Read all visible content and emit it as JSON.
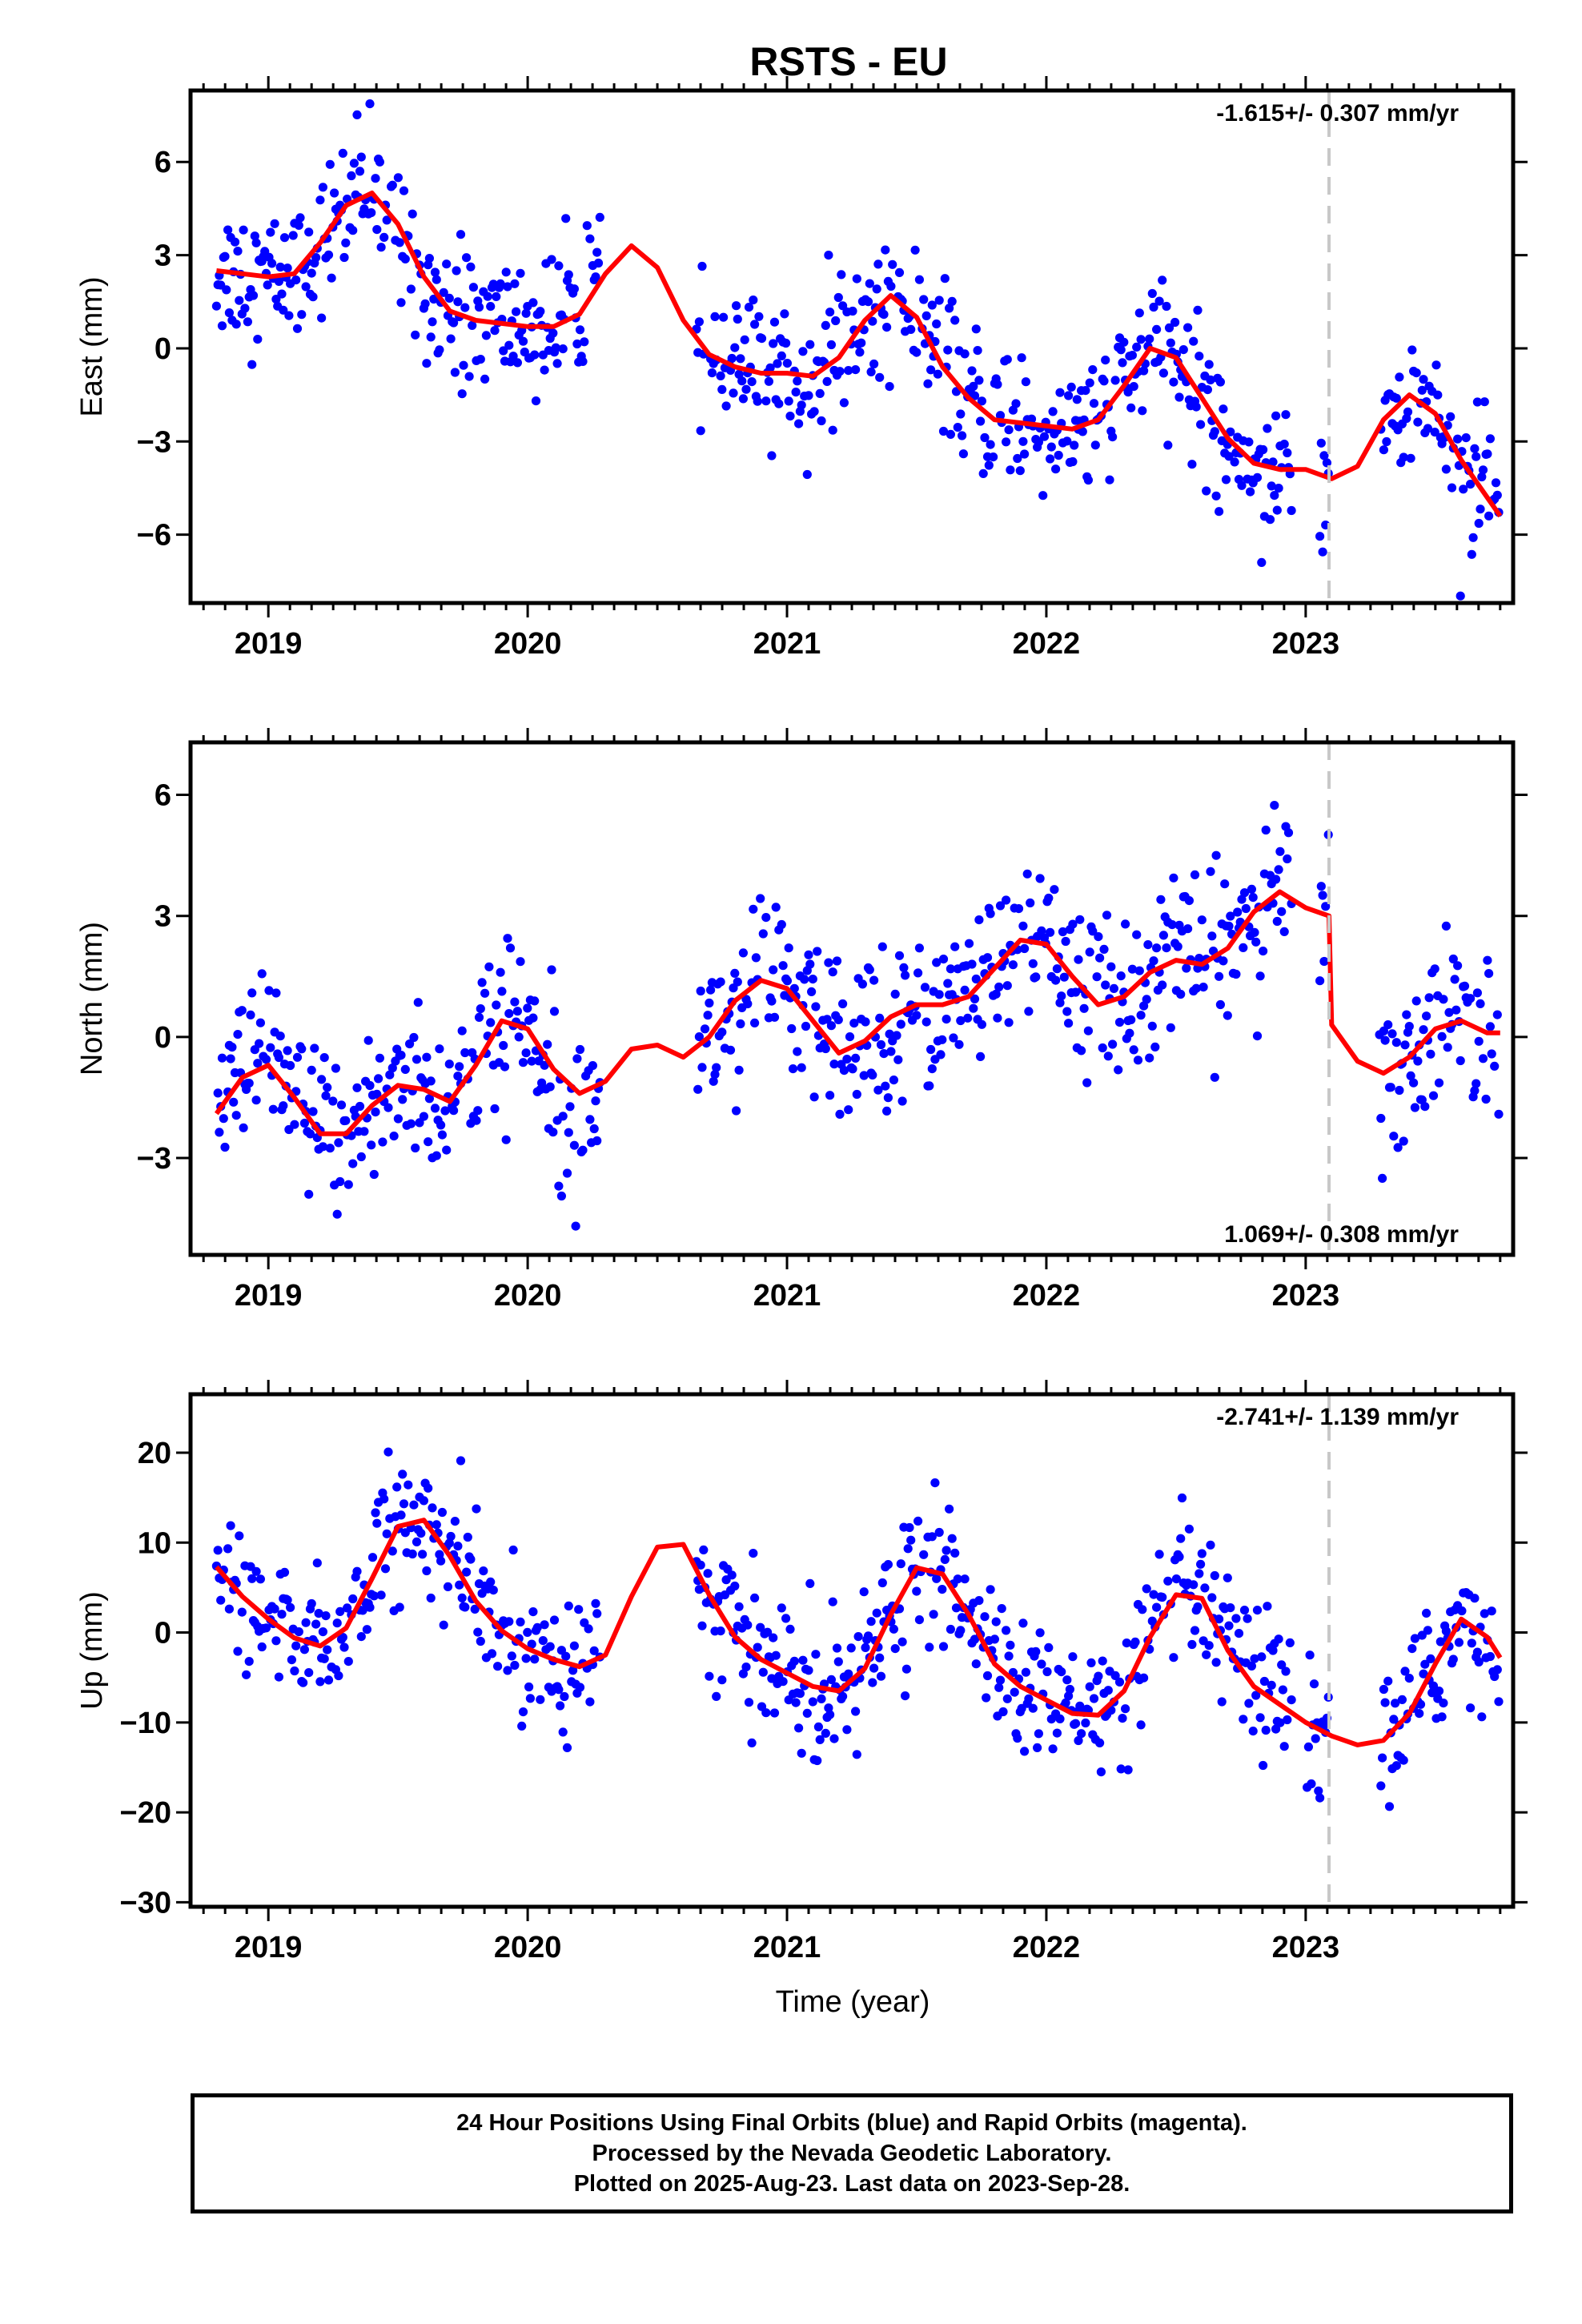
{
  "title": "RSTS - EU",
  "xlabel": "Time (year)",
  "footer": {
    "line1": "24 Hour Positions Using Final Orbits (blue) and Rapid Orbits (magenta).",
    "line2": "Processed by the Nevada Geodetic Laboratory.",
    "line3": "Plotted on 2025-Aug-23. Last data on 2023-Sep-28."
  },
  "colors": {
    "points": "#0000ff",
    "model": "#ff0000",
    "break_line": "#c8c8c8"
  },
  "chart_data": [
    {
      "type": "scatter",
      "ylabel": "East (mm)",
      "rate_label": "-1.615+/- 0.307 mm/yr",
      "rate_position": "top-right",
      "xlim": [
        2018.7,
        2023.8
      ],
      "ylim": [
        -8.2,
        8.3
      ],
      "xticks": [
        "2019",
        "2020",
        "2021",
        "2022",
        "2023"
      ],
      "yticks": [
        "6",
        "3",
        "0",
        "−3",
        "−6"
      ],
      "ytick_values": [
        6,
        3,
        0,
        -3,
        -6
      ],
      "break_x": 2023.09,
      "data_gaps": [
        [
          2020.28,
          2020.65
        ],
        [
          2022.95,
          2023.05
        ],
        [
          2023.09,
          2023.28
        ]
      ],
      "model": {
        "x": [
          2018.8,
          2018.9,
          2019.0,
          2019.1,
          2019.2,
          2019.3,
          2019.4,
          2019.5,
          2019.6,
          2019.7,
          2019.8,
          2019.9,
          2020.0,
          2020.1,
          2020.2,
          2020.3,
          2020.4,
          2020.5,
          2020.6,
          2020.7,
          2020.8,
          2020.9,
          2021.0,
          2021.1,
          2021.2,
          2021.3,
          2021.4,
          2021.5,
          2021.6,
          2021.7,
          2021.8,
          2021.9,
          2022.0,
          2022.1,
          2022.2,
          2022.3,
          2022.4,
          2022.5,
          2022.6,
          2022.7,
          2022.8,
          2022.9,
          2023.0,
          2023.1,
          2023.2,
          2023.3,
          2023.4,
          2023.5,
          2023.6,
          2023.7,
          2023.75
        ],
        "y": [
          2.5,
          2.4,
          2.3,
          2.4,
          3.4,
          4.6,
          5.0,
          4.0,
          2.3,
          1.2,
          0.9,
          0.8,
          0.7,
          0.7,
          1.1,
          2.4,
          3.3,
          2.6,
          0.9,
          -0.2,
          -0.6,
          -0.8,
          -0.8,
          -0.9,
          -0.3,
          0.9,
          1.7,
          1.0,
          -0.6,
          -1.6,
          -2.3,
          -2.4,
          -2.5,
          -2.6,
          -2.3,
          -1.2,
          0.0,
          -0.3,
          -1.6,
          -2.9,
          -3.7,
          -3.9,
          -3.9,
          -4.2,
          -3.8,
          -2.3,
          -1.5,
          -2.1,
          -3.6,
          -4.8,
          -5.4
        ]
      },
      "scatter_spread": 1.1
    },
    {
      "type": "scatter",
      "ylabel": "North (mm)",
      "rate_label": "1.069+/- 0.308 mm/yr",
      "rate_position": "bottom-right",
      "xlim": [
        2018.7,
        2023.8
      ],
      "ylim": [
        -5.4,
        7.3
      ],
      "xticks": [
        "2019",
        "2020",
        "2021",
        "2022",
        "2023"
      ],
      "yticks": [
        "6",
        "3",
        "0",
        "−3"
      ],
      "ytick_values": [
        6,
        3,
        0,
        -3
      ],
      "break_x": 2023.09,
      "data_gaps": [
        [
          2020.28,
          2020.65
        ],
        [
          2022.95,
          2023.05
        ],
        [
          2023.09,
          2023.28
        ]
      ],
      "model": {
        "x": [
          2018.8,
          2018.9,
          2019.0,
          2019.1,
          2019.2,
          2019.3,
          2019.4,
          2019.5,
          2019.6,
          2019.7,
          2019.8,
          2019.9,
          2020.0,
          2020.1,
          2020.2,
          2020.3,
          2020.4,
          2020.5,
          2020.6,
          2020.7,
          2020.8,
          2020.9,
          2021.0,
          2021.1,
          2021.2,
          2021.3,
          2021.4,
          2021.5,
          2021.6,
          2021.7,
          2021.8,
          2021.9,
          2022.0,
          2022.1,
          2022.2,
          2022.3,
          2022.4,
          2022.5,
          2022.6,
          2022.7,
          2022.8,
          2022.9,
          2023.0,
          2023.09,
          2023.1,
          2023.2,
          2023.3,
          2023.4,
          2023.5,
          2023.6,
          2023.7,
          2023.75
        ],
        "y": [
          -1.9,
          -1.0,
          -0.7,
          -1.5,
          -2.4,
          -2.4,
          -1.7,
          -1.2,
          -1.3,
          -1.6,
          -0.7,
          0.4,
          0.2,
          -0.8,
          -1.4,
          -1.1,
          -0.3,
          -0.2,
          -0.5,
          0.0,
          0.9,
          1.4,
          1.2,
          0.4,
          -0.4,
          -0.1,
          0.5,
          0.8,
          0.8,
          1.0,
          1.7,
          2.4,
          2.3,
          1.5,
          0.8,
          1.0,
          1.6,
          1.9,
          1.8,
          2.2,
          3.1,
          3.6,
          3.2,
          3.0,
          0.3,
          -0.6,
          -0.9,
          -0.5,
          0.2,
          0.4,
          0.1,
          0.1
        ]
      },
      "scatter_spread": 1.0
    },
    {
      "type": "scatter",
      "ylabel": "Up (mm)",
      "rate_label": "-2.741+/- 1.139 mm/yr",
      "rate_position": "top-right",
      "xlim": [
        2018.7,
        2023.8
      ],
      "ylim": [
        -30.5,
        26.5
      ],
      "xticks": [
        "2019",
        "2020",
        "2021",
        "2022",
        "2023"
      ],
      "yticks": [
        "20",
        "10",
        "0",
        "−10",
        "−20",
        "−30"
      ],
      "ytick_values": [
        20,
        10,
        0,
        -10,
        -20,
        -30
      ],
      "break_x": 2023.09,
      "data_gaps": [
        [
          2020.28,
          2020.65
        ],
        [
          2022.95,
          2023.0
        ],
        [
          2023.09,
          2023.28
        ]
      ],
      "model": {
        "x": [
          2018.8,
          2018.9,
          2019.0,
          2019.1,
          2019.2,
          2019.3,
          2019.4,
          2019.5,
          2019.6,
          2019.7,
          2019.8,
          2019.9,
          2020.0,
          2020.1,
          2020.2,
          2020.3,
          2020.4,
          2020.5,
          2020.6,
          2020.7,
          2020.8,
          2020.9,
          2021.0,
          2021.1,
          2021.2,
          2021.3,
          2021.4,
          2021.5,
          2021.6,
          2021.7,
          2021.8,
          2021.9,
          2022.0,
          2022.1,
          2022.2,
          2022.3,
          2022.4,
          2022.5,
          2022.6,
          2022.7,
          2022.8,
          2022.9,
          2023.0,
          2023.1,
          2023.2,
          2023.3,
          2023.4,
          2023.5,
          2023.6,
          2023.7,
          2023.75
        ],
        "y": [
          7.3,
          4.0,
          1.5,
          -0.6,
          -1.5,
          0.5,
          6.0,
          11.8,
          12.5,
          8.5,
          3.5,
          0.2,
          -1.8,
          -3.0,
          -3.8,
          -2.5,
          4.0,
          9.5,
          9.8,
          4.2,
          -0.5,
          -3.0,
          -4.5,
          -6.0,
          -6.5,
          -4.0,
          2.0,
          7.2,
          6.5,
          2.0,
          -3.5,
          -6.0,
          -7.5,
          -9.0,
          -9.2,
          -6.5,
          -0.5,
          4.2,
          3.8,
          -2.0,
          -6.0,
          -8.0,
          -10.0,
          -11.5,
          -12.5,
          -12.0,
          -9.0,
          -3.5,
          1.5,
          -0.5,
          -2.8
        ]
      },
      "scatter_spread": 3.8
    }
  ]
}
